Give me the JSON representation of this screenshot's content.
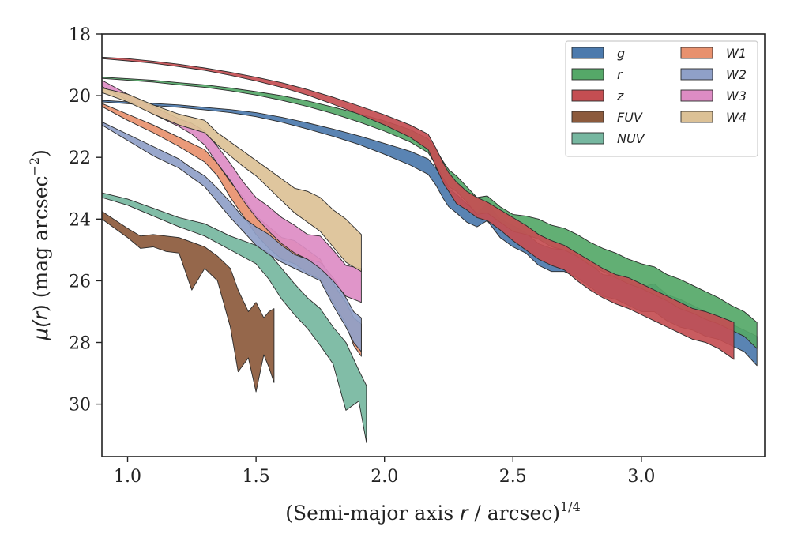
{
  "chart_data": {
    "type": "area",
    "title": "",
    "xlabel_main": "(Semi-major axis ",
    "xlabel_var": "r",
    "xlabel_tail": " / arcsec)",
    "xlabel_sup": "1/4",
    "ylabel_mu": "μ(",
    "ylabel_var": "r",
    "ylabel_mid": ") (mag arcsec",
    "ylabel_sup": "−2",
    "ylabel_end": ")",
    "xlim": [
      0.9,
      3.48
    ],
    "ylim": [
      31.7,
      18
    ],
    "xticks": [
      1.0,
      1.5,
      2.0,
      2.5,
      3.0
    ],
    "xtick_labels": [
      "1.0",
      "1.5",
      "2.0",
      "2.5",
      "3.0"
    ],
    "yticks": [
      18,
      20,
      22,
      24,
      26,
      28,
      30
    ],
    "ytick_labels": [
      "18",
      "20",
      "22",
      "24",
      "26",
      "28",
      "30"
    ],
    "legend_position": "upper-right",
    "legend_columns": 2,
    "series": [
      {
        "name": "g",
        "color": "#4c7aad",
        "points": [
          [
            0.9,
            20.15,
            20.2
          ],
          [
            1.0,
            20.2,
            20.26
          ],
          [
            1.1,
            20.25,
            20.32
          ],
          [
            1.2,
            20.3,
            20.38
          ],
          [
            1.3,
            20.38,
            20.46
          ],
          [
            1.4,
            20.45,
            20.55
          ],
          [
            1.5,
            20.55,
            20.68
          ],
          [
            1.6,
            20.7,
            20.86
          ],
          [
            1.7,
            20.88,
            21.08
          ],
          [
            1.8,
            21.08,
            21.32
          ],
          [
            1.9,
            21.3,
            21.58
          ],
          [
            2.0,
            21.55,
            21.9
          ],
          [
            2.1,
            21.8,
            22.25
          ],
          [
            2.17,
            22.05,
            22.55
          ],
          [
            2.2,
            22.35,
            22.9
          ],
          [
            2.23,
            22.75,
            23.35
          ],
          [
            2.25,
            23.0,
            23.6
          ],
          [
            2.28,
            23.2,
            23.8
          ],
          [
            2.32,
            23.5,
            24.1
          ],
          [
            2.36,
            23.8,
            24.25
          ],
          [
            2.4,
            23.5,
            24.05
          ],
          [
            2.45,
            24.0,
            24.6
          ],
          [
            2.5,
            24.2,
            24.9
          ],
          [
            2.55,
            24.45,
            25.1
          ],
          [
            2.6,
            24.8,
            25.5
          ],
          [
            2.65,
            24.95,
            25.7
          ],
          [
            2.7,
            25.0,
            25.7
          ],
          [
            2.75,
            25.2,
            25.9
          ],
          [
            2.8,
            25.45,
            26.2
          ],
          [
            2.85,
            25.8,
            26.5
          ],
          [
            2.9,
            25.85,
            26.6
          ],
          [
            2.95,
            26.0,
            26.8
          ],
          [
            3.0,
            26.2,
            27.0
          ],
          [
            3.05,
            26.1,
            27.0
          ],
          [
            3.1,
            26.45,
            27.3
          ],
          [
            3.15,
            26.6,
            27.5
          ],
          [
            3.2,
            26.8,
            27.6
          ],
          [
            3.25,
            27.0,
            27.8
          ],
          [
            3.3,
            27.2,
            27.9
          ],
          [
            3.35,
            27.4,
            28.1
          ],
          [
            3.4,
            27.6,
            28.3
          ],
          [
            3.45,
            27.8,
            28.75
          ]
        ]
      },
      {
        "name": "r",
        "color": "#55a868",
        "points": [
          [
            0.9,
            19.4,
            19.44
          ],
          [
            1.0,
            19.45,
            19.5
          ],
          [
            1.1,
            19.5,
            19.56
          ],
          [
            1.2,
            19.58,
            19.65
          ],
          [
            1.3,
            19.65,
            19.73
          ],
          [
            1.4,
            19.75,
            19.84
          ],
          [
            1.5,
            19.87,
            19.98
          ],
          [
            1.6,
            20.0,
            20.15
          ],
          [
            1.7,
            20.17,
            20.35
          ],
          [
            1.8,
            20.37,
            20.58
          ],
          [
            1.9,
            20.58,
            20.85
          ],
          [
            2.0,
            20.82,
            21.15
          ],
          [
            2.1,
            21.1,
            21.5
          ],
          [
            2.17,
            21.4,
            21.85
          ],
          [
            2.2,
            21.75,
            22.25
          ],
          [
            2.23,
            22.15,
            22.7
          ],
          [
            2.25,
            22.4,
            22.95
          ],
          [
            2.28,
            22.6,
            23.1
          ],
          [
            2.32,
            22.95,
            23.45
          ],
          [
            2.36,
            23.3,
            23.85
          ],
          [
            2.4,
            23.25,
            23.8
          ],
          [
            2.45,
            23.6,
            24.1
          ],
          [
            2.5,
            23.85,
            24.4
          ],
          [
            2.55,
            23.9,
            24.5
          ],
          [
            2.6,
            24.0,
            24.65
          ],
          [
            2.65,
            24.2,
            24.9
          ],
          [
            2.7,
            24.3,
            25.0
          ],
          [
            2.75,
            24.5,
            25.2
          ],
          [
            2.8,
            24.75,
            25.5
          ],
          [
            2.85,
            24.95,
            25.7
          ],
          [
            2.9,
            25.1,
            25.9
          ],
          [
            2.95,
            25.3,
            26.1
          ],
          [
            3.0,
            25.45,
            26.25
          ],
          [
            3.05,
            25.55,
            26.45
          ],
          [
            3.1,
            25.8,
            26.65
          ],
          [
            3.15,
            25.95,
            26.9
          ],
          [
            3.2,
            26.15,
            27.05
          ],
          [
            3.25,
            26.35,
            27.25
          ],
          [
            3.3,
            26.55,
            27.4
          ],
          [
            3.35,
            26.8,
            27.6
          ],
          [
            3.4,
            27.0,
            27.8
          ],
          [
            3.45,
            27.35,
            28.2
          ]
        ]
      },
      {
        "name": "z",
        "color": "#c44e52",
        "points": [
          [
            0.9,
            18.75,
            18.8
          ],
          [
            1.0,
            18.8,
            18.87
          ],
          [
            1.1,
            18.88,
            18.95
          ],
          [
            1.2,
            18.98,
            19.06
          ],
          [
            1.3,
            19.1,
            19.18
          ],
          [
            1.4,
            19.24,
            19.34
          ],
          [
            1.5,
            19.4,
            19.52
          ],
          [
            1.6,
            19.58,
            19.73
          ],
          [
            1.7,
            19.8,
            19.98
          ],
          [
            1.8,
            20.05,
            20.28
          ],
          [
            1.9,
            20.33,
            20.6
          ],
          [
            2.0,
            20.62,
            20.95
          ],
          [
            2.1,
            20.95,
            21.35
          ],
          [
            2.17,
            21.25,
            21.75
          ],
          [
            2.2,
            21.7,
            22.3
          ],
          [
            2.23,
            22.2,
            22.85
          ],
          [
            2.25,
            22.5,
            23.1
          ],
          [
            2.28,
            22.8,
            23.5
          ],
          [
            2.32,
            23.1,
            23.7
          ],
          [
            2.36,
            23.3,
            23.95
          ],
          [
            2.4,
            23.45,
            24.05
          ],
          [
            2.45,
            23.7,
            24.35
          ],
          [
            2.5,
            23.95,
            24.7
          ],
          [
            2.55,
            24.2,
            25.0
          ],
          [
            2.6,
            24.5,
            25.3
          ],
          [
            2.65,
            24.7,
            25.5
          ],
          [
            2.7,
            24.85,
            25.65
          ],
          [
            2.75,
            25.1,
            26.0
          ],
          [
            2.8,
            25.35,
            26.3
          ],
          [
            2.85,
            25.6,
            26.55
          ],
          [
            2.9,
            25.8,
            26.75
          ],
          [
            2.95,
            25.9,
            26.9
          ],
          [
            3.0,
            26.1,
            27.1
          ],
          [
            3.05,
            26.3,
            27.3
          ],
          [
            3.1,
            26.5,
            27.5
          ],
          [
            3.15,
            26.7,
            27.7
          ],
          [
            3.2,
            26.9,
            27.9
          ],
          [
            3.25,
            27.0,
            28.0
          ],
          [
            3.3,
            27.15,
            28.2
          ],
          [
            3.36,
            27.35,
            28.55
          ]
        ]
      },
      {
        "name": "FUV",
        "color": "#8c5a3c",
        "points": [
          [
            0.9,
            23.75,
            24.0
          ],
          [
            1.0,
            24.3,
            24.6
          ],
          [
            1.05,
            24.55,
            24.95
          ],
          [
            1.1,
            24.5,
            24.9
          ],
          [
            1.15,
            24.55,
            25.05
          ],
          [
            1.2,
            24.6,
            25.1
          ],
          [
            1.25,
            24.75,
            26.3
          ],
          [
            1.3,
            24.9,
            25.6
          ],
          [
            1.35,
            25.2,
            26.0
          ],
          [
            1.4,
            25.6,
            27.5
          ],
          [
            1.43,
            26.3,
            28.95
          ],
          [
            1.47,
            27.0,
            28.5
          ],
          [
            1.5,
            26.7,
            29.6
          ],
          [
            1.53,
            27.2,
            28.4
          ],
          [
            1.55,
            27.0,
            28.8
          ],
          [
            1.57,
            26.9,
            29.3
          ]
        ]
      },
      {
        "name": "NUV",
        "color": "#76b7a0",
        "points": [
          [
            0.9,
            23.15,
            23.3
          ],
          [
            1.0,
            23.35,
            23.55
          ],
          [
            1.1,
            23.65,
            23.9
          ],
          [
            1.2,
            23.95,
            24.25
          ],
          [
            1.3,
            24.15,
            24.55
          ],
          [
            1.4,
            24.55,
            25.0
          ],
          [
            1.5,
            24.85,
            25.45
          ],
          [
            1.55,
            25.1,
            25.95
          ],
          [
            1.6,
            25.6,
            26.6
          ],
          [
            1.65,
            26.1,
            27.1
          ],
          [
            1.7,
            26.55,
            27.55
          ],
          [
            1.75,
            26.9,
            28.1
          ],
          [
            1.8,
            27.5,
            28.7
          ],
          [
            1.85,
            28.0,
            30.2
          ],
          [
            1.9,
            28.9,
            29.9
          ],
          [
            1.93,
            29.4,
            31.25
          ]
        ]
      },
      {
        "name": "W1",
        "color": "#e8916e",
        "points": [
          [
            0.9,
            20.25,
            20.35
          ],
          [
            1.0,
            20.6,
            20.8
          ],
          [
            1.1,
            20.95,
            21.2
          ],
          [
            1.2,
            21.35,
            21.65
          ],
          [
            1.25,
            21.55,
            21.9
          ],
          [
            1.3,
            21.75,
            22.15
          ],
          [
            1.35,
            22.2,
            22.6
          ],
          [
            1.4,
            22.8,
            23.3
          ],
          [
            1.45,
            23.3,
            23.9
          ],
          [
            1.5,
            23.9,
            24.5
          ],
          [
            1.55,
            24.25,
            24.95
          ],
          [
            1.6,
            24.6,
            25.3
          ],
          [
            1.65,
            24.7,
            25.45
          ],
          [
            1.7,
            25.0,
            25.75
          ],
          [
            1.75,
            25.3,
            25.95
          ],
          [
            1.8,
            26.1,
            26.7
          ],
          [
            1.85,
            26.7,
            27.4
          ],
          [
            1.88,
            27.2,
            28.1
          ],
          [
            1.91,
            27.4,
            28.45
          ]
        ]
      },
      {
        "name": "W2",
        "color": "#8fa0c8",
        "points": [
          [
            0.9,
            20.85,
            20.95
          ],
          [
            1.0,
            21.25,
            21.45
          ],
          [
            1.1,
            21.65,
            21.95
          ],
          [
            1.2,
            22.05,
            22.35
          ],
          [
            1.25,
            22.35,
            22.65
          ],
          [
            1.3,
            22.6,
            22.95
          ],
          [
            1.35,
            23.0,
            23.45
          ],
          [
            1.4,
            23.45,
            23.95
          ],
          [
            1.45,
            23.95,
            24.4
          ],
          [
            1.5,
            24.25,
            24.85
          ],
          [
            1.55,
            24.5,
            25.15
          ],
          [
            1.6,
            24.85,
            25.4
          ],
          [
            1.65,
            25.15,
            25.6
          ],
          [
            1.7,
            25.3,
            25.8
          ],
          [
            1.75,
            25.4,
            26.0
          ],
          [
            1.8,
            25.9,
            26.8
          ],
          [
            1.85,
            26.55,
            27.5
          ],
          [
            1.88,
            27.0,
            28.0
          ],
          [
            1.91,
            27.2,
            28.3
          ]
        ]
      },
      {
        "name": "W3",
        "color": "#dd8cc4",
        "points": [
          [
            0.9,
            19.5,
            19.7
          ],
          [
            1.0,
            19.95,
            20.15
          ],
          [
            1.1,
            20.35,
            20.6
          ],
          [
            1.2,
            20.75,
            21.0
          ],
          [
            1.25,
            20.9,
            21.25
          ],
          [
            1.3,
            21.15,
            21.6
          ],
          [
            1.35,
            21.65,
            22.2
          ],
          [
            1.4,
            22.2,
            22.75
          ],
          [
            1.45,
            22.8,
            23.4
          ],
          [
            1.5,
            23.3,
            23.95
          ],
          [
            1.55,
            23.6,
            24.4
          ],
          [
            1.6,
            23.95,
            24.8
          ],
          [
            1.65,
            24.2,
            25.1
          ],
          [
            1.7,
            24.5,
            25.3
          ],
          [
            1.75,
            24.55,
            25.6
          ],
          [
            1.8,
            25.0,
            26.0
          ],
          [
            1.85,
            25.5,
            26.5
          ],
          [
            1.91,
            25.6,
            26.7
          ]
        ]
      },
      {
        "name": "W4",
        "color": "#dcc196",
        "points": [
          [
            0.9,
            19.75,
            19.9
          ],
          [
            1.0,
            19.95,
            20.2
          ],
          [
            1.1,
            20.3,
            20.6
          ],
          [
            1.2,
            20.6,
            20.95
          ],
          [
            1.3,
            20.8,
            21.2
          ],
          [
            1.35,
            21.2,
            21.6
          ],
          [
            1.4,
            21.5,
            21.95
          ],
          [
            1.45,
            21.8,
            22.3
          ],
          [
            1.5,
            22.1,
            22.6
          ],
          [
            1.55,
            22.4,
            23.0
          ],
          [
            1.6,
            22.7,
            23.4
          ],
          [
            1.65,
            23.0,
            23.8
          ],
          [
            1.7,
            23.1,
            24.1
          ],
          [
            1.75,
            23.3,
            24.4
          ],
          [
            1.8,
            23.7,
            24.9
          ],
          [
            1.85,
            24.0,
            25.4
          ],
          [
            1.91,
            24.5,
            25.7
          ]
        ]
      }
    ]
  }
}
